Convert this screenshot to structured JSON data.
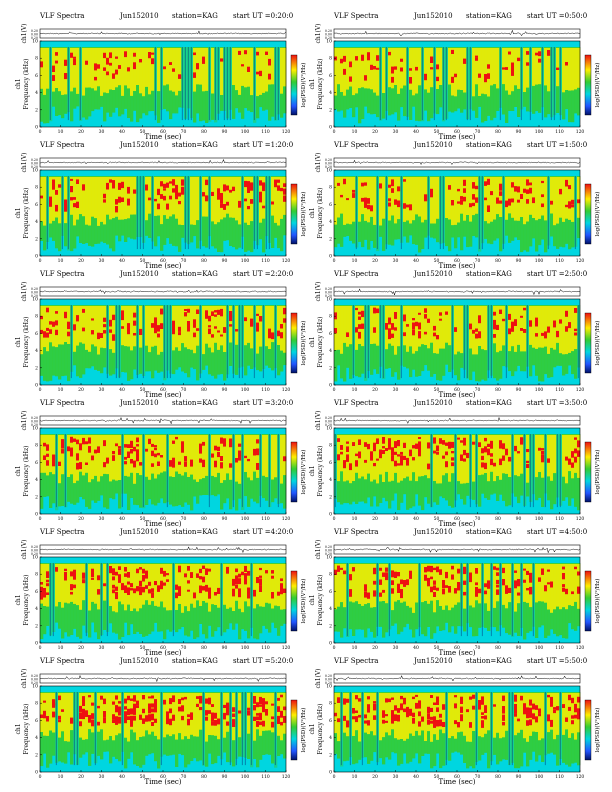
{
  "page": {
    "title_left": "VLF Spectra",
    "date": "Jun152010",
    "station": "station=KAG",
    "start_prefix": "start UT ="
  },
  "axes_text": {
    "xlabel": "Time (sec)",
    "ch_ylabel": "ch1(V)",
    "freq_ylabel_ch": "ch1",
    "freq_ylabel": "Frequency (kHz)",
    "cbar_label": "log(PSD)(V²/Hz)"
  },
  "colors": {
    "background_cyan": "#00d6e0",
    "green": "#33cc33",
    "yellow": "#ffee00",
    "red": "#ee1111",
    "blue": "#2255ff",
    "dark_blue": "#001166"
  },
  "chart_data": [
    {
      "type": "heatmap",
      "panel": 1,
      "start_ut": "0:20:0",
      "xlim": [
        0,
        120
      ],
      "ylim": [
        0,
        10
      ],
      "x_ticks": [
        "0",
        "10",
        "20",
        "30",
        "40",
        "50",
        "60",
        "70",
        "80",
        "90",
        "100",
        "110",
        "120"
      ],
      "y_ticks": [
        "0",
        "2",
        "4",
        "6",
        "8",
        "10"
      ],
      "ch_ticks": [
        "0.20",
        "0.00",
        "0.20"
      ]
    },
    {
      "type": "heatmap",
      "panel": 2,
      "start_ut": "0:50:0",
      "xlim": [
        0,
        120
      ],
      "ylim": [
        0,
        10
      ],
      "x_ticks": [
        "0",
        "10",
        "20",
        "30",
        "40",
        "50",
        "60",
        "70",
        "80",
        "90",
        "100",
        "110",
        "120"
      ],
      "y_ticks": [
        "0",
        "2",
        "4",
        "6",
        "8",
        "10"
      ],
      "ch_ticks": [
        "0.20",
        "0.00",
        "0.20"
      ]
    },
    {
      "type": "heatmap",
      "panel": 3,
      "start_ut": "1:20:0",
      "xlim": [
        0,
        120
      ],
      "ylim": [
        0,
        10
      ],
      "x_ticks": [
        "0",
        "10",
        "20",
        "30",
        "40",
        "50",
        "60",
        "70",
        "80",
        "90",
        "100",
        "110",
        "120"
      ],
      "y_ticks": [
        "0",
        "2",
        "4",
        "6",
        "8",
        "10"
      ],
      "ch_ticks": [
        "0.20",
        "0.00",
        "0.20"
      ]
    },
    {
      "type": "heatmap",
      "panel": 4,
      "start_ut": "1:50:0",
      "xlim": [
        0,
        120
      ],
      "ylim": [
        0,
        10
      ],
      "x_ticks": [
        "0",
        "10",
        "20",
        "30",
        "40",
        "50",
        "60",
        "70",
        "80",
        "90",
        "100",
        "110",
        "120"
      ],
      "y_ticks": [
        "0",
        "2",
        "4",
        "6",
        "8",
        "10"
      ],
      "ch_ticks": [
        "0.20",
        "0.00",
        "0.20"
      ]
    },
    {
      "type": "heatmap",
      "panel": 5,
      "start_ut": "2:20:0",
      "xlim": [
        0,
        120
      ],
      "ylim": [
        0,
        10
      ],
      "x_ticks": [
        "0",
        "10",
        "20",
        "30",
        "40",
        "50",
        "60",
        "70",
        "80",
        "90",
        "100",
        "110",
        "120"
      ],
      "y_ticks": [
        "0",
        "2",
        "4",
        "6",
        "8",
        "10"
      ],
      "ch_ticks": [
        "0.20",
        "0.00",
        "0.20"
      ]
    },
    {
      "type": "heatmap",
      "panel": 6,
      "start_ut": "2:50:0",
      "xlim": [
        0,
        120
      ],
      "ylim": [
        0,
        10
      ],
      "x_ticks": [
        "0",
        "10",
        "20",
        "30",
        "40",
        "50",
        "60",
        "70",
        "80",
        "90",
        "100",
        "110",
        "120"
      ],
      "y_ticks": [
        "0",
        "2",
        "4",
        "6",
        "8",
        "10"
      ],
      "ch_ticks": [
        "0.20",
        "0.00",
        "0.20"
      ]
    },
    {
      "type": "heatmap",
      "panel": 7,
      "start_ut": "3:20:0",
      "xlim": [
        0,
        120
      ],
      "ylim": [
        0,
        10
      ],
      "x_ticks": [
        "0",
        "10",
        "20",
        "30",
        "40",
        "50",
        "60",
        "70",
        "80",
        "90",
        "100",
        "110",
        "120"
      ],
      "y_ticks": [
        "0",
        "2",
        "4",
        "6",
        "8",
        "10"
      ],
      "ch_ticks": [
        "0.20",
        "0.00",
        "0.20"
      ]
    },
    {
      "type": "heatmap",
      "panel": 8,
      "start_ut": "3:50:0",
      "xlim": [
        0,
        120
      ],
      "ylim": [
        0,
        10
      ],
      "x_ticks": [
        "0",
        "10",
        "20",
        "30",
        "40",
        "50",
        "60",
        "70",
        "80",
        "90",
        "100",
        "110",
        "120"
      ],
      "y_ticks": [
        "0",
        "2",
        "4",
        "6",
        "8",
        "10"
      ],
      "ch_ticks": [
        "0.20",
        "0.00",
        "0.20"
      ]
    },
    {
      "type": "heatmap",
      "panel": 9,
      "start_ut": "4:20:0",
      "xlim": [
        0,
        120
      ],
      "ylim": [
        0,
        10
      ],
      "x_ticks": [
        "0",
        "10",
        "20",
        "30",
        "40",
        "50",
        "60",
        "70",
        "80",
        "90",
        "100",
        "110",
        "120"
      ],
      "y_ticks": [
        "0",
        "2",
        "4",
        "6",
        "8",
        "10"
      ],
      "ch_ticks": [
        "0.20",
        "0.00",
        "0.20"
      ]
    },
    {
      "type": "heatmap",
      "panel": 10,
      "start_ut": "4:50:0",
      "xlim": [
        0,
        120
      ],
      "ylim": [
        0,
        10
      ],
      "x_ticks": [
        "0",
        "10",
        "20",
        "30",
        "40",
        "50",
        "60",
        "70",
        "80",
        "90",
        "100",
        "110",
        "120"
      ],
      "y_ticks": [
        "0",
        "2",
        "4",
        "6",
        "8",
        "10"
      ],
      "ch_ticks": [
        "0.20",
        "0.00",
        "0.20"
      ]
    },
    {
      "type": "heatmap",
      "panel": 11,
      "start_ut": "5:20:0",
      "xlim": [
        0,
        120
      ],
      "ylim": [
        0,
        10
      ],
      "x_ticks": [
        "0",
        "10",
        "20",
        "30",
        "40",
        "50",
        "60",
        "70",
        "80",
        "90",
        "100",
        "110",
        "120"
      ],
      "y_ticks": [
        "0",
        "2",
        "4",
        "6",
        "8",
        "10"
      ],
      "ch_ticks": [
        "0.20",
        "0.00",
        "0.20"
      ]
    },
    {
      "type": "heatmap",
      "panel": 12,
      "start_ut": "5:50:0",
      "xlim": [
        0,
        120
      ],
      "ylim": [
        0,
        10
      ],
      "x_ticks": [
        "0",
        "10",
        "20",
        "30",
        "40",
        "50",
        "60",
        "70",
        "80",
        "90",
        "100",
        "110",
        "120"
      ],
      "y_ticks": [
        "0",
        "2",
        "4",
        "6",
        "8",
        "10"
      ],
      "ch_ticks": [
        "0.20",
        "0.00",
        "0.20"
      ]
    }
  ]
}
